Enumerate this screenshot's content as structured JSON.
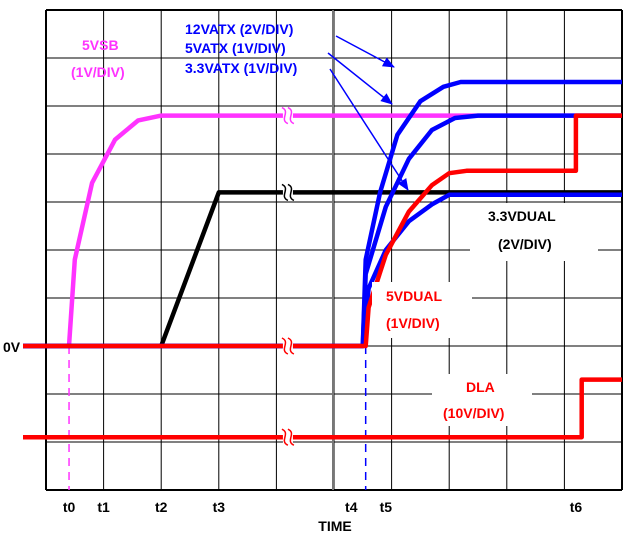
{
  "chart_data": {
    "type": "line",
    "xlabel": "TIME",
    "x_ticks": [
      "t0",
      "t1",
      "t2",
      "t3",
      "t4",
      "t5",
      "t6"
    ],
    "zero_label": "0V",
    "series": [
      {
        "name": "5VSB",
        "scale": "(1V/DIV)",
        "color": "#ff33ff",
        "points": [
          [
            -0.4,
            0
          ],
          [
            0.4,
            0
          ],
          [
            0.5,
            1.8
          ],
          [
            0.8,
            3.4
          ],
          [
            1.2,
            4.3
          ],
          [
            1.6,
            4.7
          ],
          [
            2.0,
            4.8
          ],
          [
            10.0,
            4.8
          ]
        ]
      },
      {
        "name": "3.3VDUAL",
        "scale": "(2V/DIV)",
        "color": "#000000",
        "points": [
          [
            -0.4,
            0
          ],
          [
            2.0,
            0
          ],
          [
            3.0,
            3.2
          ],
          [
            10.0,
            3.2
          ]
        ]
      },
      {
        "name": "12VATX",
        "scale": "(2V/DIV)",
        "color": "#0000ff",
        "points": [
          [
            -0.4,
            0
          ],
          [
            5.5,
            0
          ],
          [
            5.55,
            1.8
          ],
          [
            5.8,
            3.2
          ],
          [
            6.1,
            4.4
          ],
          [
            6.5,
            5.1
          ],
          [
            6.9,
            5.4
          ],
          [
            7.2,
            5.5
          ],
          [
            10.0,
            5.5
          ]
        ]
      },
      {
        "name": "5VATX",
        "scale": "(1V/DIV)",
        "color": "#0000ff",
        "points": [
          [
            -0.4,
            0
          ],
          [
            5.5,
            0
          ],
          [
            5.55,
            1.5
          ],
          [
            5.9,
            2.9
          ],
          [
            6.3,
            3.9
          ],
          [
            6.7,
            4.5
          ],
          [
            7.1,
            4.75
          ],
          [
            7.5,
            4.8
          ],
          [
            10.0,
            4.8
          ]
        ]
      },
      {
        "name": "3.3VATX",
        "scale": "(1V/DIV)",
        "color": "#0000ff",
        "points": [
          [
            -0.4,
            0
          ],
          [
            5.5,
            0
          ],
          [
            5.6,
            1.2
          ],
          [
            5.9,
            2.0
          ],
          [
            6.3,
            2.6
          ],
          [
            6.7,
            2.95
          ],
          [
            7.0,
            3.15
          ],
          [
            10.0,
            3.15
          ]
        ]
      },
      {
        "name": "5VDUAL",
        "scale": "(1V/DIV)",
        "color": "#ff0000",
        "points": [
          [
            -0.4,
            0
          ],
          [
            5.55,
            0
          ],
          [
            5.6,
            0.8
          ],
          [
            5.9,
            1.9
          ],
          [
            6.3,
            2.8
          ],
          [
            6.7,
            3.35
          ],
          [
            7.0,
            3.6
          ],
          [
            7.3,
            3.65
          ],
          [
            9.2,
            3.65
          ],
          [
            9.2,
            4.8
          ],
          [
            10.0,
            4.8
          ]
        ]
      },
      {
        "name": "DLA",
        "scale": "(10V/DIV)",
        "color": "#ff0000",
        "points": [
          [
            -0.4,
            -1.9
          ],
          [
            9.3,
            -1.9
          ],
          [
            9.3,
            -0.7
          ],
          [
            10.0,
            -0.7
          ]
        ]
      }
    ],
    "grid": true
  }
}
